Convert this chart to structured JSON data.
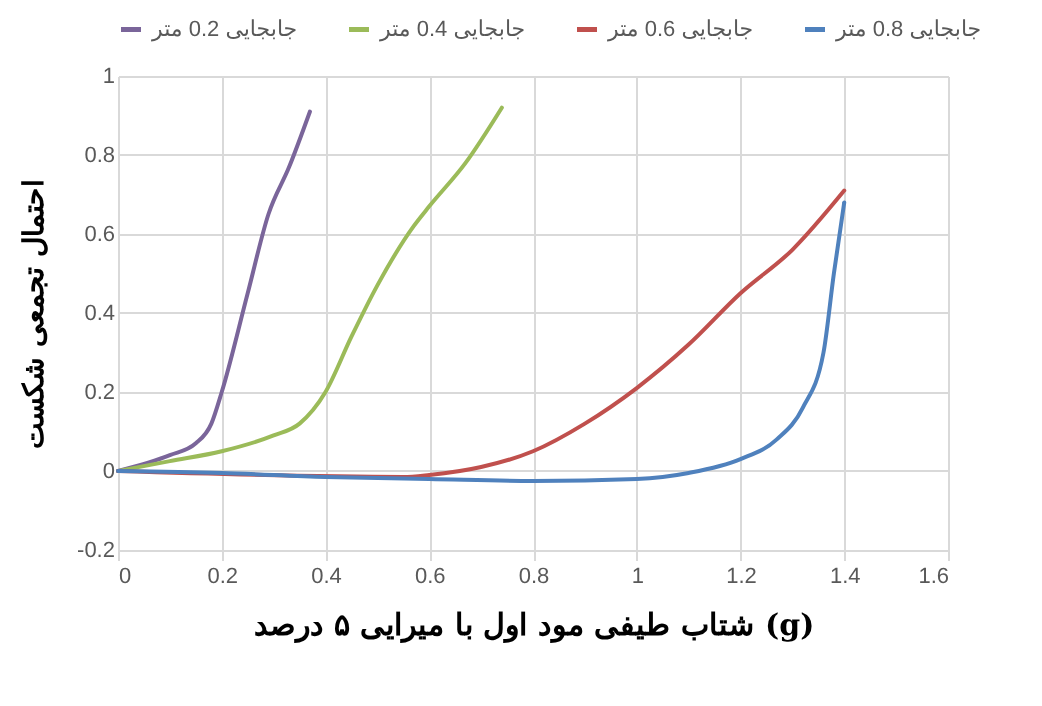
{
  "chart_data": {
    "type": "line",
    "xlabel": "شتاب طیفی مود اول با میرایی ۵ درصد (g)",
    "ylabel": "احتمال تجمعی شکست",
    "xlim": [
      0,
      1.6
    ],
    "xticks": [
      0,
      0.2,
      0.4,
      0.6,
      0.8,
      1,
      1.2,
      1.4,
      1.6
    ],
    "ylim": [
      -0.2,
      1
    ],
    "yticks": [
      -0.2,
      0,
      0.2,
      0.4,
      0.6,
      0.8,
      1
    ],
    "grid": true,
    "legend": "top",
    "marker": "none",
    "line_style": "solid",
    "series": [
      {
        "name": "جابجایی 0.2 متر",
        "color": "#7a659a",
        "x": [
          0,
          0.1,
          0.15,
          0.18,
          0.2,
          0.25,
          0.29,
          0.33,
          0.37
        ],
        "values": [
          0,
          0.04,
          0.07,
          0.12,
          0.2,
          0.45,
          0.65,
          0.77,
          0.91
        ]
      },
      {
        "name": "جابجایی 0.4 متر",
        "color": "#9bbb59",
        "x": [
          0,
          0.1,
          0.2,
          0.3,
          0.35,
          0.4,
          0.45,
          0.5,
          0.57,
          0.6,
          0.67,
          0.74
        ],
        "values": [
          0,
          0.025,
          0.05,
          0.09,
          0.12,
          0.2,
          0.34,
          0.47,
          0.62,
          0.67,
          0.78,
          0.92
        ]
      },
      {
        "name": "جابجایی 0.6 متر",
        "color": "#c0504d",
        "x": [
          0,
          0.55,
          0.6,
          0.7,
          0.8,
          0.9,
          1,
          1.1,
          1.2,
          1.3,
          1.4
        ],
        "values": [
          0,
          -0.015,
          -0.01,
          0.01,
          0.05,
          0.12,
          0.21,
          0.32,
          0.45,
          0.56,
          0.71
        ]
      },
      {
        "name": "جابجایی 0.8 متر",
        "color": "#4f81bd",
        "x": [
          0,
          0.2,
          0.4,
          0.6,
          0.8,
          1,
          1.1,
          1.2,
          1.27,
          1.32,
          1.36,
          1.38,
          1.4
        ],
        "values": [
          0,
          -0.005,
          -0.015,
          -0.02,
          -0.025,
          -0.02,
          -0.005,
          0.03,
          0.08,
          0.16,
          0.3,
          0.5,
          0.68
        ]
      }
    ]
  }
}
